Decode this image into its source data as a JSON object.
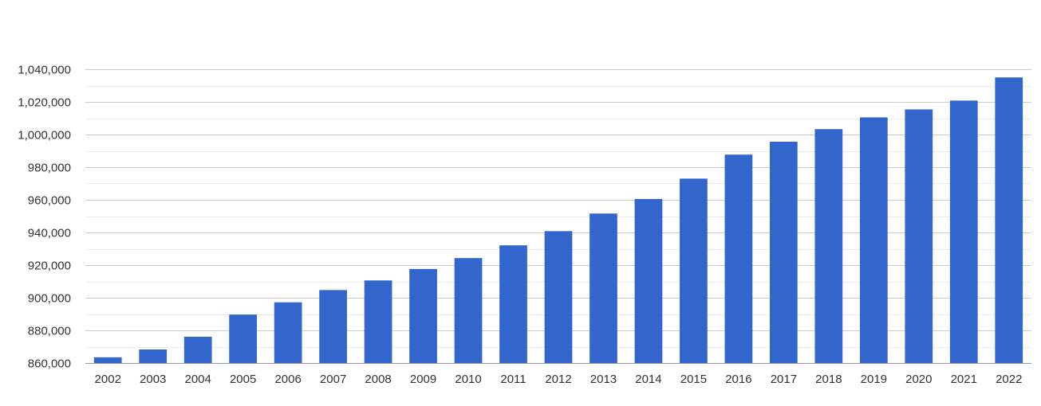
{
  "chart_data": {
    "type": "bar",
    "categories": [
      "2002",
      "2003",
      "2004",
      "2005",
      "2006",
      "2007",
      "2008",
      "2009",
      "2010",
      "2011",
      "2012",
      "2013",
      "2014",
      "2015",
      "2016",
      "2017",
      "2018",
      "2019",
      "2020",
      "2021",
      "2022"
    ],
    "values": [
      863500,
      868300,
      876100,
      889700,
      897200,
      904700,
      910600,
      917600,
      924300,
      932100,
      940800,
      951600,
      960500,
      973000,
      987700,
      995600,
      1003300,
      1010500,
      1015400,
      1020800,
      1035000
    ],
    "ylim": [
      860000,
      1040000
    ],
    "yticks": [
      860000,
      880000,
      900000,
      920000,
      940000,
      960000,
      980000,
      1000000,
      1020000,
      1040000
    ],
    "ytick_labels": [
      "860,000",
      "880,000",
      "900,000",
      "920,000",
      "940,000",
      "960,000",
      "980,000",
      "1,000,000",
      "1,020,000",
      "1,040,000"
    ],
    "minor_grid": true,
    "bar_color": "#3366cc",
    "grid_color": "#cccccc",
    "minor_grid_color": "#ebebeb",
    "title": "",
    "xlabel": "",
    "ylabel": ""
  }
}
